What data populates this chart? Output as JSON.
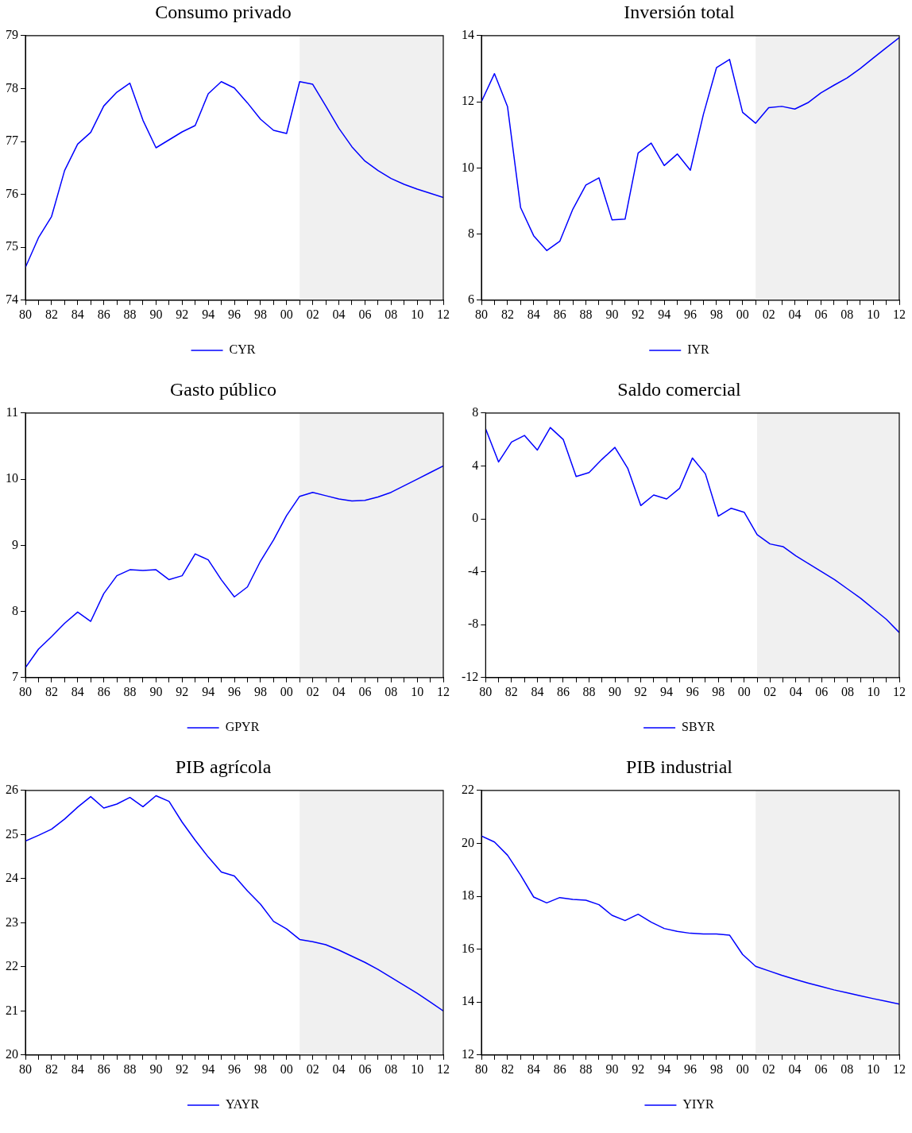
{
  "chart_data": [
    {
      "type": "line",
      "title": "Consumo privado",
      "x": [
        1980,
        1981,
        1982,
        1983,
        1984,
        1985,
        1986,
        1987,
        1988,
        1989,
        1990,
        1991,
        1992,
        1993,
        1994,
        1995,
        1996,
        1997,
        1998,
        1999,
        2000,
        2001,
        2002,
        2003,
        2004,
        2005,
        2006,
        2007,
        2008,
        2009,
        2010,
        2011,
        2012
      ],
      "series": [
        {
          "name": "CYR",
          "color": "#0000ff",
          "values": [
            74.62,
            75.18,
            75.58,
            76.45,
            76.95,
            77.17,
            77.67,
            77.93,
            78.1,
            77.4,
            76.88,
            77.03,
            77.18,
            77.3,
            77.9,
            78.13,
            78.01,
            77.73,
            77.42,
            77.21,
            77.15,
            78.13,
            78.08,
            77.67,
            77.25,
            76.9,
            76.63,
            76.45,
            76.3,
            76.19,
            76.1,
            76.02,
            75.94
          ]
        }
      ],
      "xlim": [
        1980,
        2012
      ],
      "xticks": [
        {
          "value": 1980,
          "label": "80"
        },
        {
          "value": 1981,
          "label": null
        },
        {
          "value": 1982,
          "label": "82"
        },
        {
          "value": 1983,
          "label": null
        },
        {
          "value": 1984,
          "label": "84"
        },
        {
          "value": 1985,
          "label": null
        },
        {
          "value": 1986,
          "label": "86"
        },
        {
          "value": 1987,
          "label": null
        },
        {
          "value": 1988,
          "label": "88"
        },
        {
          "value": 1989,
          "label": null
        },
        {
          "value": 1990,
          "label": "90"
        },
        {
          "value": 1991,
          "label": null
        },
        {
          "value": 1992,
          "label": "92"
        },
        {
          "value": 1993,
          "label": null
        },
        {
          "value": 1994,
          "label": "94"
        },
        {
          "value": 1995,
          "label": null
        },
        {
          "value": 1996,
          "label": "96"
        },
        {
          "value": 1997,
          "label": null
        },
        {
          "value": 1998,
          "label": "98"
        },
        {
          "value": 1999,
          "label": null
        },
        {
          "value": 2000,
          "label": "00"
        },
        {
          "value": 2001,
          "label": null
        },
        {
          "value": 2002,
          "label": "02"
        },
        {
          "value": 2003,
          "label": null
        },
        {
          "value": 2004,
          "label": "04"
        },
        {
          "value": 2005,
          "label": null
        },
        {
          "value": 2006,
          "label": "06"
        },
        {
          "value": 2007,
          "label": null
        },
        {
          "value": 2008,
          "label": "08"
        },
        {
          "value": 2009,
          "label": null
        },
        {
          "value": 2010,
          "label": "10"
        },
        {
          "value": 2011,
          "label": null
        },
        {
          "value": 2012,
          "label": "12"
        }
      ],
      "ylim": [
        74,
        79
      ],
      "yticks": [
        74,
        75,
        76,
        77,
        78,
        79
      ],
      "bands": [
        {
          "axis": "x",
          "from": 2001,
          "to": 2012,
          "color": "#f0f0f0"
        }
      ],
      "legend": "bottom",
      "grid": false
    },
    {
      "type": "line",
      "title": "Inversión total",
      "x": [
        1980,
        1981,
        1982,
        1983,
        1984,
        1985,
        1986,
        1987,
        1988,
        1989,
        1990,
        1991,
        1992,
        1993,
        1994,
        1995,
        1996,
        1997,
        1998,
        1999,
        2000,
        2001,
        2002,
        2003,
        2004,
        2005,
        2006,
        2007,
        2008,
        2009,
        2010,
        2011,
        2012
      ],
      "series": [
        {
          "name": "IYR",
          "color": "#0000ff",
          "values": [
            12.0,
            12.85,
            11.85,
            8.8,
            7.95,
            7.5,
            7.78,
            8.75,
            9.48,
            9.7,
            8.43,
            8.45,
            10.45,
            10.75,
            10.07,
            10.42,
            9.93,
            11.62,
            13.03,
            13.28,
            11.68,
            11.35,
            11.82,
            11.86,
            11.78,
            11.97,
            12.27,
            12.5,
            12.72,
            13.0,
            13.32,
            13.63,
            13.94
          ]
        }
      ],
      "xlim": [
        1980,
        2012
      ],
      "xticks": [
        {
          "value": 1980,
          "label": "80"
        },
        {
          "value": 1981,
          "label": null
        },
        {
          "value": 1982,
          "label": "82"
        },
        {
          "value": 1983,
          "label": null
        },
        {
          "value": 1984,
          "label": "84"
        },
        {
          "value": 1985,
          "label": null
        },
        {
          "value": 1986,
          "label": "86"
        },
        {
          "value": 1987,
          "label": null
        },
        {
          "value": 1988,
          "label": "88"
        },
        {
          "value": 1989,
          "label": null
        },
        {
          "value": 1990,
          "label": "90"
        },
        {
          "value": 1991,
          "label": null
        },
        {
          "value": 1992,
          "label": "92"
        },
        {
          "value": 1993,
          "label": null
        },
        {
          "value": 1994,
          "label": "94"
        },
        {
          "value": 1995,
          "label": null
        },
        {
          "value": 1996,
          "label": "96"
        },
        {
          "value": 1997,
          "label": null
        },
        {
          "value": 1998,
          "label": "98"
        },
        {
          "value": 1999,
          "label": null
        },
        {
          "value": 2000,
          "label": "00"
        },
        {
          "value": 2001,
          "label": null
        },
        {
          "value": 2002,
          "label": "02"
        },
        {
          "value": 2003,
          "label": null
        },
        {
          "value": 2004,
          "label": "04"
        },
        {
          "value": 2005,
          "label": null
        },
        {
          "value": 2006,
          "label": "06"
        },
        {
          "value": 2007,
          "label": null
        },
        {
          "value": 2008,
          "label": "08"
        },
        {
          "value": 2009,
          "label": null
        },
        {
          "value": 2010,
          "label": "10"
        },
        {
          "value": 2011,
          "label": null
        },
        {
          "value": 2012,
          "label": "12"
        }
      ],
      "ylim": [
        6,
        14
      ],
      "yticks": [
        6,
        8,
        10,
        12,
        14
      ],
      "bands": [
        {
          "axis": "x",
          "from": 2001,
          "to": 2012,
          "color": "#f0f0f0"
        }
      ],
      "legend": "bottom",
      "grid": false
    },
    {
      "type": "line",
      "title": "Gasto público",
      "x": [
        1980,
        1981,
        1982,
        1983,
        1984,
        1985,
        1986,
        1987,
        1988,
        1989,
        1990,
        1991,
        1992,
        1993,
        1994,
        1995,
        1996,
        1997,
        1998,
        1999,
        2000,
        2001,
        2002,
        2003,
        2004,
        2005,
        2006,
        2007,
        2008,
        2009,
        2010,
        2011,
        2012
      ],
      "series": [
        {
          "name": "GPYR",
          "color": "#0000ff",
          "values": [
            7.15,
            7.43,
            7.62,
            7.82,
            7.99,
            7.85,
            8.27,
            8.54,
            8.63,
            8.62,
            8.63,
            8.48,
            8.54,
            8.87,
            8.78,
            8.48,
            8.22,
            8.37,
            8.76,
            9.08,
            9.45,
            9.74,
            9.8,
            9.75,
            9.7,
            9.67,
            9.68,
            9.73,
            9.8,
            9.9,
            10.0,
            10.1,
            10.2
          ]
        }
      ],
      "xlim": [
        1980,
        2012
      ],
      "xticks": [
        {
          "value": 1980,
          "label": "80"
        },
        {
          "value": 1981,
          "label": null
        },
        {
          "value": 1982,
          "label": "82"
        },
        {
          "value": 1983,
          "label": null
        },
        {
          "value": 1984,
          "label": "84"
        },
        {
          "value": 1985,
          "label": null
        },
        {
          "value": 1986,
          "label": "86"
        },
        {
          "value": 1987,
          "label": null
        },
        {
          "value": 1988,
          "label": "88"
        },
        {
          "value": 1989,
          "label": null
        },
        {
          "value": 1990,
          "label": "90"
        },
        {
          "value": 1991,
          "label": null
        },
        {
          "value": 1992,
          "label": "92"
        },
        {
          "value": 1993,
          "label": null
        },
        {
          "value": 1994,
          "label": "94"
        },
        {
          "value": 1995,
          "label": null
        },
        {
          "value": 1996,
          "label": "96"
        },
        {
          "value": 1997,
          "label": null
        },
        {
          "value": 1998,
          "label": "98"
        },
        {
          "value": 1999,
          "label": null
        },
        {
          "value": 2000,
          "label": "00"
        },
        {
          "value": 2001,
          "label": null
        },
        {
          "value": 2002,
          "label": "02"
        },
        {
          "value": 2003,
          "label": null
        },
        {
          "value": 2004,
          "label": "04"
        },
        {
          "value": 2005,
          "label": null
        },
        {
          "value": 2006,
          "label": "06"
        },
        {
          "value": 2007,
          "label": null
        },
        {
          "value": 2008,
          "label": "08"
        },
        {
          "value": 2009,
          "label": null
        },
        {
          "value": 2010,
          "label": "10"
        },
        {
          "value": 2011,
          "label": null
        },
        {
          "value": 2012,
          "label": "12"
        }
      ],
      "ylim": [
        7,
        11
      ],
      "yticks": [
        7,
        8,
        9,
        10,
        11
      ],
      "bands": [
        {
          "axis": "x",
          "from": 2001,
          "to": 2012,
          "color": "#f0f0f0"
        }
      ],
      "legend": "bottom",
      "grid": false
    },
    {
      "type": "line",
      "title": "Saldo comercial",
      "x": [
        1980,
        1981,
        1982,
        1983,
        1984,
        1985,
        1986,
        1987,
        1988,
        1989,
        1990,
        1991,
        1992,
        1993,
        1994,
        1995,
        1996,
        1997,
        1998,
        1999,
        2000,
        2001,
        2002,
        2003,
        2004,
        2005,
        2006,
        2007,
        2008,
        2009,
        2010,
        2011,
        2012
      ],
      "series": [
        {
          "name": "SBYR",
          "color": "#0000ff",
          "values": [
            6.8,
            4.3,
            5.8,
            6.3,
            5.2,
            6.9,
            6.0,
            3.2,
            3.5,
            4.5,
            5.4,
            3.8,
            1.0,
            1.8,
            1.5,
            2.3,
            4.6,
            3.4,
            0.2,
            0.8,
            0.5,
            -1.2,
            -1.9,
            -2.1,
            -2.8,
            -3.4,
            -4.0,
            -4.6,
            -5.3,
            -6.0,
            -6.8,
            -7.6,
            -8.6
          ]
        }
      ],
      "xlim": [
        1980,
        2012
      ],
      "xticks": [
        {
          "value": 1980,
          "label": "80"
        },
        {
          "value": 1981,
          "label": null
        },
        {
          "value": 1982,
          "label": "82"
        },
        {
          "value": 1983,
          "label": null
        },
        {
          "value": 1984,
          "label": "84"
        },
        {
          "value": 1985,
          "label": null
        },
        {
          "value": 1986,
          "label": "86"
        },
        {
          "value": 1987,
          "label": null
        },
        {
          "value": 1988,
          "label": "88"
        },
        {
          "value": 1989,
          "label": null
        },
        {
          "value": 1990,
          "label": "90"
        },
        {
          "value": 1991,
          "label": null
        },
        {
          "value": 1992,
          "label": "92"
        },
        {
          "value": 1993,
          "label": null
        },
        {
          "value": 1994,
          "label": "94"
        },
        {
          "value": 1995,
          "label": null
        },
        {
          "value": 1996,
          "label": "96"
        },
        {
          "value": 1997,
          "label": null
        },
        {
          "value": 1998,
          "label": "98"
        },
        {
          "value": 1999,
          "label": null
        },
        {
          "value": 2000,
          "label": "00"
        },
        {
          "value": 2001,
          "label": null
        },
        {
          "value": 2002,
          "label": "02"
        },
        {
          "value": 2003,
          "label": null
        },
        {
          "value": 2004,
          "label": "04"
        },
        {
          "value": 2005,
          "label": null
        },
        {
          "value": 2006,
          "label": "06"
        },
        {
          "value": 2007,
          "label": null
        },
        {
          "value": 2008,
          "label": "08"
        },
        {
          "value": 2009,
          "label": null
        },
        {
          "value": 2010,
          "label": "10"
        },
        {
          "value": 2011,
          "label": null
        },
        {
          "value": 2012,
          "label": "12"
        }
      ],
      "ylim": [
        -12,
        8
      ],
      "yticks": [
        -12,
        -8,
        -4,
        0,
        4,
        8
      ],
      "bands": [
        {
          "axis": "x",
          "from": 2001,
          "to": 2012,
          "color": "#f0f0f0"
        }
      ],
      "legend": "bottom",
      "grid": false
    },
    {
      "type": "line",
      "title": "PIB agrícola",
      "x": [
        1980,
        1981,
        1982,
        1983,
        1984,
        1985,
        1986,
        1987,
        1988,
        1989,
        1990,
        1991,
        1992,
        1993,
        1994,
        1995,
        1996,
        1997,
        1998,
        1999,
        2000,
        2001,
        2002,
        2003,
        2004,
        2005,
        2006,
        2007,
        2008,
        2009,
        2010,
        2011,
        2012
      ],
      "series": [
        {
          "name": "YAYR",
          "color": "#0000ff",
          "values": [
            24.85,
            24.98,
            25.12,
            25.35,
            25.62,
            25.86,
            25.6,
            25.69,
            25.84,
            25.63,
            25.88,
            25.75,
            25.28,
            24.87,
            24.49,
            24.15,
            24.06,
            23.72,
            23.42,
            23.03,
            22.86,
            22.62,
            22.57,
            22.5,
            22.38,
            22.24,
            22.1,
            21.94,
            21.76,
            21.58,
            21.4,
            21.2,
            21.0
          ]
        }
      ],
      "xlim": [
        1980,
        2012
      ],
      "xticks": [
        {
          "value": 1980,
          "label": "80"
        },
        {
          "value": 1981,
          "label": null
        },
        {
          "value": 1982,
          "label": "82"
        },
        {
          "value": 1983,
          "label": null
        },
        {
          "value": 1984,
          "label": "84"
        },
        {
          "value": 1985,
          "label": null
        },
        {
          "value": 1986,
          "label": "86"
        },
        {
          "value": 1987,
          "label": null
        },
        {
          "value": 1988,
          "label": "88"
        },
        {
          "value": 1989,
          "label": null
        },
        {
          "value": 1990,
          "label": "90"
        },
        {
          "value": 1991,
          "label": null
        },
        {
          "value": 1992,
          "label": "92"
        },
        {
          "value": 1993,
          "label": null
        },
        {
          "value": 1994,
          "label": "94"
        },
        {
          "value": 1995,
          "label": null
        },
        {
          "value": 1996,
          "label": "96"
        },
        {
          "value": 1997,
          "label": null
        },
        {
          "value": 1998,
          "label": "98"
        },
        {
          "value": 1999,
          "label": null
        },
        {
          "value": 2000,
          "label": "00"
        },
        {
          "value": 2001,
          "label": null
        },
        {
          "value": 2002,
          "label": "02"
        },
        {
          "value": 2003,
          "label": null
        },
        {
          "value": 2004,
          "label": "04"
        },
        {
          "value": 2005,
          "label": null
        },
        {
          "value": 2006,
          "label": "06"
        },
        {
          "value": 2007,
          "label": null
        },
        {
          "value": 2008,
          "label": "08"
        },
        {
          "value": 2009,
          "label": null
        },
        {
          "value": 2010,
          "label": "10"
        },
        {
          "value": 2011,
          "label": null
        },
        {
          "value": 2012,
          "label": "12"
        }
      ],
      "ylim": [
        20,
        26
      ],
      "yticks": [
        20,
        21,
        22,
        23,
        24,
        25,
        26
      ],
      "bands": [
        {
          "axis": "x",
          "from": 2001,
          "to": 2012,
          "color": "#f0f0f0"
        }
      ],
      "legend": "bottom",
      "grid": false
    },
    {
      "type": "line",
      "title": "PIB industrial",
      "x": [
        1980,
        1981,
        1982,
        1983,
        1984,
        1985,
        1986,
        1987,
        1988,
        1989,
        1990,
        1991,
        1992,
        1993,
        1994,
        1995,
        1996,
        1997,
        1998,
        1999,
        2000,
        2001,
        2002,
        2003,
        2004,
        2005,
        2006,
        2007,
        2008,
        2009,
        2010,
        2011,
        2012
      ],
      "series": [
        {
          "name": "YIYR",
          "color": "#0000ff",
          "values": [
            20.28,
            20.05,
            19.55,
            18.8,
            17.97,
            17.75,
            17.95,
            17.88,
            17.85,
            17.68,
            17.28,
            17.08,
            17.32,
            17.02,
            16.78,
            16.67,
            16.6,
            16.57,
            16.57,
            16.53,
            15.8,
            15.35,
            15.18,
            15.01,
            14.86,
            14.72,
            14.59,
            14.46,
            14.35,
            14.24,
            14.13,
            14.03,
            13.92
          ]
        }
      ],
      "xlim": [
        1980,
        2012
      ],
      "xticks": [
        {
          "value": 1980,
          "label": "80"
        },
        {
          "value": 1981,
          "label": null
        },
        {
          "value": 1982,
          "label": "82"
        },
        {
          "value": 1983,
          "label": null
        },
        {
          "value": 1984,
          "label": "84"
        },
        {
          "value": 1985,
          "label": null
        },
        {
          "value": 1986,
          "label": "86"
        },
        {
          "value": 1987,
          "label": null
        },
        {
          "value": 1988,
          "label": "88"
        },
        {
          "value": 1989,
          "label": null
        },
        {
          "value": 1990,
          "label": "90"
        },
        {
          "value": 1991,
          "label": null
        },
        {
          "value": 1992,
          "label": "92"
        },
        {
          "value": 1993,
          "label": null
        },
        {
          "value": 1994,
          "label": "94"
        },
        {
          "value": 1995,
          "label": null
        },
        {
          "value": 1996,
          "label": "96"
        },
        {
          "value": 1997,
          "label": null
        },
        {
          "value": 1998,
          "label": "98"
        },
        {
          "value": 1999,
          "label": null
        },
        {
          "value": 2000,
          "label": "00"
        },
        {
          "value": 2001,
          "label": null
        },
        {
          "value": 2002,
          "label": "02"
        },
        {
          "value": 2003,
          "label": null
        },
        {
          "value": 2004,
          "label": "04"
        },
        {
          "value": 2005,
          "label": null
        },
        {
          "value": 2006,
          "label": "06"
        },
        {
          "value": 2007,
          "label": null
        },
        {
          "value": 2008,
          "label": "08"
        },
        {
          "value": 2009,
          "label": null
        },
        {
          "value": 2010,
          "label": "10"
        },
        {
          "value": 2011,
          "label": null
        },
        {
          "value": 2012,
          "label": "12"
        }
      ],
      "ylim": [
        12,
        22
      ],
      "yticks": [
        12,
        14,
        16,
        18,
        20,
        22
      ],
      "bands": [
        {
          "axis": "x",
          "from": 2001,
          "to": 2012,
          "color": "#f0f0f0"
        }
      ],
      "legend": "bottom",
      "grid": false
    }
  ]
}
